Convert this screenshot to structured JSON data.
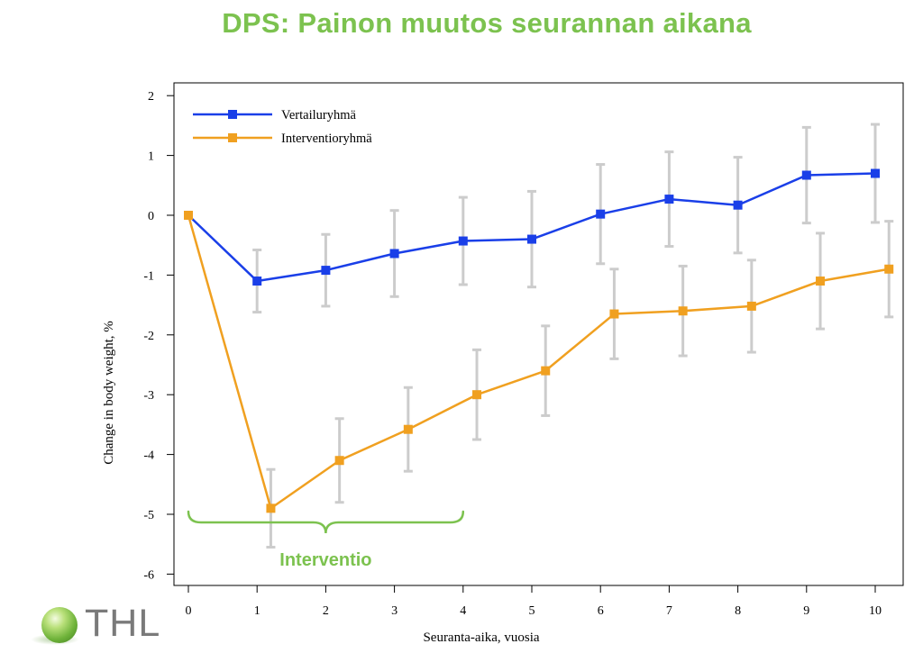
{
  "title": "DPS: Painon muutos seurannan aikana",
  "colors": {
    "title": "#7cc24f",
    "comparison": "#1a3fe8",
    "intervention": "#f0a020",
    "errorbar": "#cccccc",
    "annotation": "#7cc24f"
  },
  "chart_data": {
    "type": "line",
    "xlabel": "Seuranta-aika, vuosia",
    "ylabel": "Change in body weight, %",
    "xlim": [
      0,
      10
    ],
    "ylim": [
      -6,
      2
    ],
    "xticks": [
      "0",
      "1",
      "2",
      "3",
      "4",
      "5",
      "6",
      "7",
      "8",
      "9",
      "10"
    ],
    "yticks": [
      "2",
      "1",
      "0",
      "-1",
      "-2",
      "-3",
      "-4",
      "-5",
      "-6"
    ],
    "legend_position": "top-left",
    "series": [
      {
        "name": "Vertailuryhmä",
        "color": "#1a3fe8",
        "x": [
          0,
          1,
          2,
          3,
          4,
          5,
          6,
          7,
          8,
          9,
          10
        ],
        "y": [
          0,
          -1.1,
          -0.92,
          -0.64,
          -0.43,
          -0.4,
          0.02,
          0.27,
          0.17,
          0.67,
          0.7
        ],
        "error": [
          0,
          0.52,
          0.6,
          0.72,
          0.73,
          0.8,
          0.83,
          0.79,
          0.8,
          0.8,
          0.82
        ]
      },
      {
        "name": "Interventioryhmä",
        "color": "#f0a020",
        "x": [
          0,
          1.2,
          2.2,
          3.2,
          4.2,
          5.2,
          6.2,
          7.2,
          8.2,
          9.2,
          10.2
        ],
        "y": [
          0,
          -4.9,
          -4.1,
          -3.58,
          -3.0,
          -2.6,
          -1.65,
          -1.6,
          -1.52,
          -1.1,
          -0.9
        ],
        "error": [
          0,
          0.65,
          0.7,
          0.7,
          0.75,
          0.75,
          0.75,
          0.75,
          0.77,
          0.8,
          0.8
        ]
      }
    ],
    "annotation": {
      "label": "Interventio",
      "x_start": 0,
      "x_end": 4
    }
  }
}
